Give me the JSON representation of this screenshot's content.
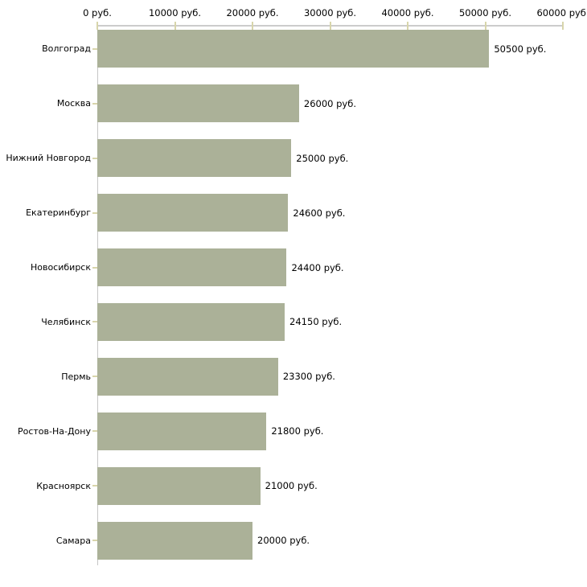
{
  "chart_data": {
    "type": "bar",
    "orientation": "horizontal",
    "title": "",
    "categories": [
      "Волгоград",
      "Москва",
      "Нижний Новгород",
      "Екатеринбург",
      "Новосибирск",
      "Челябинск",
      "Пермь",
      "Ростов-На-Дону",
      "Красноярск",
      "Самара"
    ],
    "values": [
      50500,
      26000,
      25000,
      24600,
      24400,
      24150,
      23300,
      21800,
      21000,
      20000
    ],
    "value_labels": [
      "50500 руб.",
      "26000 руб.",
      "25000 руб.",
      "24600 руб.",
      "24400 руб.",
      "24150 руб.",
      "23300 руб.",
      "21800 руб.",
      "21000 руб.",
      "20000 руб."
    ],
    "x_tick_values": [
      0,
      10000,
      20000,
      30000,
      40000,
      50000,
      60000
    ],
    "x_tick_labels": [
      "0 руб.",
      "10000 руб.",
      "20000 руб.",
      "30000 руб.",
      "40000 руб.",
      "50000 руб.",
      "60000 руб."
    ],
    "xlim": [
      0,
      60000
    ],
    "ylabel": "",
    "xlabel": "",
    "unit": "руб.",
    "grid": false,
    "legend": "none",
    "colors": {
      "bar": "#abb198",
      "axis_line": "#c6c6c6",
      "tick_mark": "#d8d5ab",
      "text": "#000000",
      "background": "#ffffff"
    }
  }
}
